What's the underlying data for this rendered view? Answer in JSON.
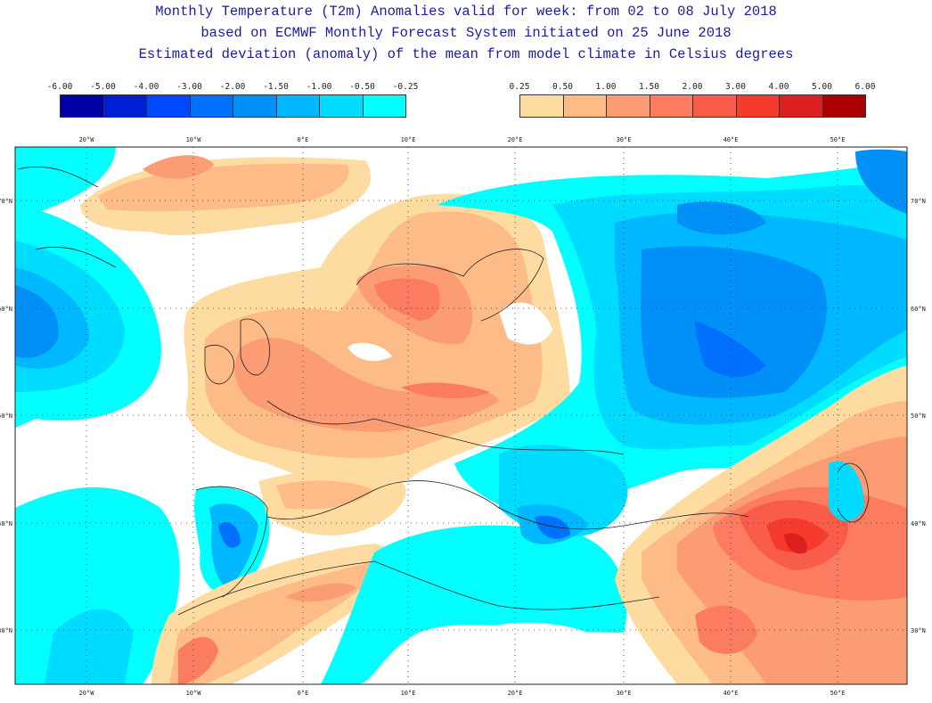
{
  "title": {
    "line1": "Monthly Temperature (T2m) Anomalies valid for week: from 02 to 08 July 2018",
    "line2": "based on ECMWF Monthly Forecast System initiated on 25 June 2018",
    "line3": "Estimated deviation (anomaly) of the mean from model climate in Celsius degrees"
  },
  "legend_cold": {
    "ticks": [
      "-6.00",
      "-5.00",
      "-4.00",
      "-3.00",
      "-2.00",
      "-1.50",
      "-1.00",
      "-0.50",
      "-0.25"
    ],
    "colors": [
      "#0000a8",
      "#0020d8",
      "#0048ff",
      "#0070ff",
      "#0090f8",
      "#00b8ff",
      "#00dcff",
      "#00ffff"
    ]
  },
  "legend_warm": {
    "ticks": [
      "0.25",
      "0.50",
      "1.00",
      "1.50",
      "2.00",
      "3.00",
      "4.00",
      "5.00",
      "6.00"
    ],
    "colors": [
      "#fedba0",
      "#fdbb88",
      "#fc9c74",
      "#fb7c60",
      "#f95c4a",
      "#f63a2e",
      "#dc2020",
      "#aa0000"
    ]
  },
  "map": {
    "lon_labels": [
      "20°W",
      "10°W",
      "0°E",
      "10°E",
      "20°E",
      "30°E",
      "40°E",
      "50°E"
    ],
    "lat_labels": [
      "70°N",
      "60°N",
      "50°N",
      "40°N",
      "30°N"
    ]
  }
}
